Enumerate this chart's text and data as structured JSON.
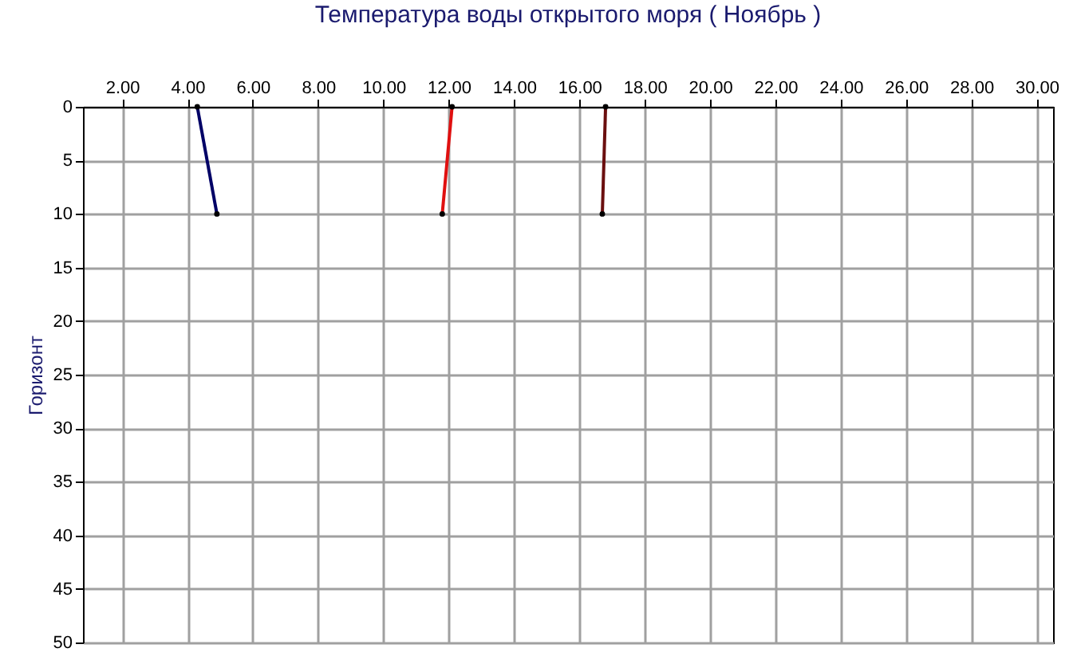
{
  "chart_data": {
    "type": "line",
    "title": "Температура воды открытого моря     ( Ноябрь )",
    "ylabel": "Горизонт",
    "xlim": [
      0.8,
      30.5
    ],
    "ylim": [
      50,
      0
    ],
    "xticks": [
      {
        "value": 2,
        "label": "2.00"
      },
      {
        "value": 4,
        "label": "4.00"
      },
      {
        "value": 6,
        "label": "6.00"
      },
      {
        "value": 8,
        "label": "8.00"
      },
      {
        "value": 10,
        "label": "10.00"
      },
      {
        "value": 12,
        "label": "12.00"
      },
      {
        "value": 14,
        "label": "14.00"
      },
      {
        "value": 16,
        "label": "16.00"
      },
      {
        "value": 18,
        "label": "18.00"
      },
      {
        "value": 20,
        "label": "20.00"
      },
      {
        "value": 22,
        "label": "22.00"
      },
      {
        "value": 24,
        "label": "24.00"
      },
      {
        "value": 26,
        "label": "26.00"
      },
      {
        "value": 28,
        "label": "28.00"
      },
      {
        "value": 30,
        "label": "30.00"
      }
    ],
    "yticks": [
      0,
      5,
      10,
      15,
      20,
      25,
      30,
      35,
      40,
      45,
      50
    ],
    "grid": true,
    "marker": "circle",
    "line_style": "solid",
    "series": [
      {
        "color": "#000066",
        "x": [
          4.3,
          4.9
        ],
        "values": [
          0,
          10
        ]
      },
      {
        "color": "#e01010",
        "x": [
          12.1,
          11.8
        ],
        "values": [
          0,
          10
        ]
      },
      {
        "color": "#6b0f0f",
        "x": [
          16.8,
          16.7
        ],
        "values": [
          0,
          10
        ]
      }
    ]
  }
}
